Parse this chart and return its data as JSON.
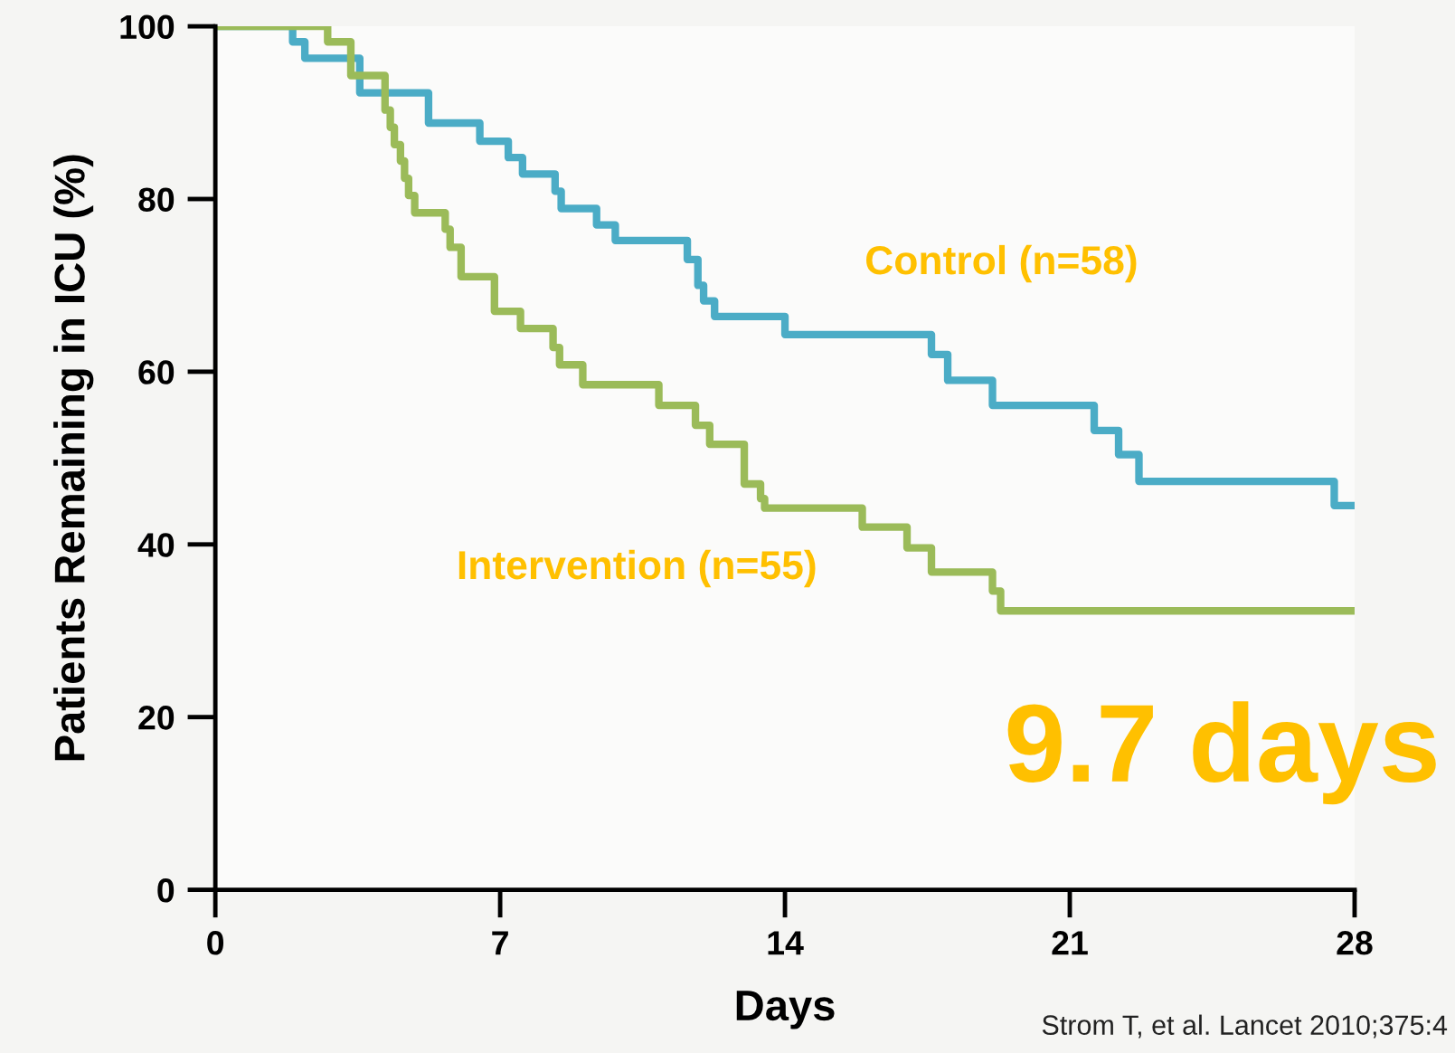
{
  "chart_data": {
    "type": "step",
    "xlabel": "Days",
    "ylabel": "Patients Remaining in ICU (%)",
    "xlim": [
      0,
      28
    ],
    "xticks": [
      0,
      7,
      14,
      21,
      28
    ],
    "ylim": [
      0,
      100
    ],
    "yticks": [
      0,
      20,
      40,
      60,
      80,
      100
    ],
    "grid": false,
    "legend": false,
    "line_style": "solid",
    "marker": "none",
    "series": [
      {
        "name": "Control (n=58)",
        "color": "#4bacc6",
        "x": [
          0,
          1.9,
          2.2,
          3.55,
          5.24,
          6.5,
          7.2,
          7.55,
          8.35,
          8.5,
          9.37,
          9.83,
          11.6,
          11.86,
          12.0,
          12.27,
          14.0,
          17.6,
          18.0,
          19.1,
          21.6,
          22.2,
          22.7,
          27.5,
          28
        ],
        "values": [
          100,
          98.2,
          96.3,
          92.3,
          88.8,
          86.7,
          84.8,
          82.9,
          80.9,
          78.9,
          77,
          75.2,
          73,
          70,
          68.2,
          66.4,
          64.3,
          62,
          59,
          56.1,
          53.2,
          50.4,
          47.3,
          44.5,
          44.5
        ]
      },
      {
        "name": "Intervention (n=55)",
        "color": "#9bbb59",
        "x": [
          0,
          2.76,
          3.33,
          4.17,
          4.3,
          4.4,
          4.55,
          4.65,
          4.75,
          4.9,
          5.65,
          5.77,
          6.04,
          6.86,
          7.5,
          8.3,
          8.46,
          9.03,
          10.9,
          11.8,
          12.15,
          13.0,
          13.4,
          13.5,
          15.9,
          17.0,
          17.6,
          19.1,
          19.3,
          28
        ],
        "values": [
          100,
          98.2,
          94.3,
          90.3,
          88.3,
          86.3,
          84.4,
          82.4,
          80.4,
          78.4,
          76.5,
          74.4,
          71,
          67,
          65,
          62.8,
          60.8,
          58.5,
          56.1,
          53.8,
          51.6,
          47,
          45.3,
          44.2,
          42,
          39.6,
          36.8,
          34.6,
          32.3,
          32.3
        ]
      }
    ],
    "annotations": [
      "9.7 days",
      "Strom T, et al. Lancet 2010;375:4"
    ]
  }
}
